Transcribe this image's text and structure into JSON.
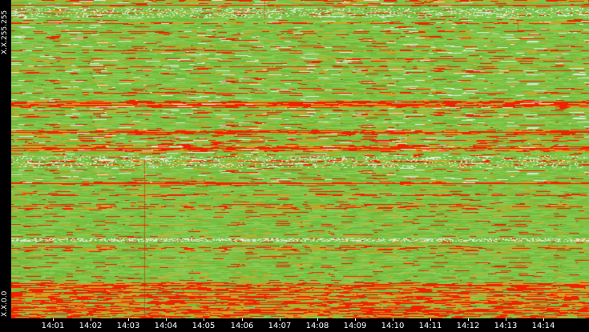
{
  "chart_data": {
    "type": "heatmap",
    "title": "",
    "xlabel": "",
    "ylabel": "",
    "y_axis": {
      "top_label": "X.X.255.255",
      "bottom_label": "X.X.0.0"
    },
    "x_axis": {
      "tick_labels": [
        "14:01",
        "14:02",
        "14:03",
        "14:04",
        "14:05",
        "14:06",
        "14:07",
        "14:08",
        "14:09",
        "14:10",
        "14:11",
        "14:12",
        "14:13",
        "14:14"
      ]
    },
    "colors": {
      "background": "#000000",
      "low": "#7cc243",
      "mid": "#d4a020",
      "high": "#ee2200",
      "sparse": "#dfe8d8",
      "text": "#ffffff"
    }
  }
}
